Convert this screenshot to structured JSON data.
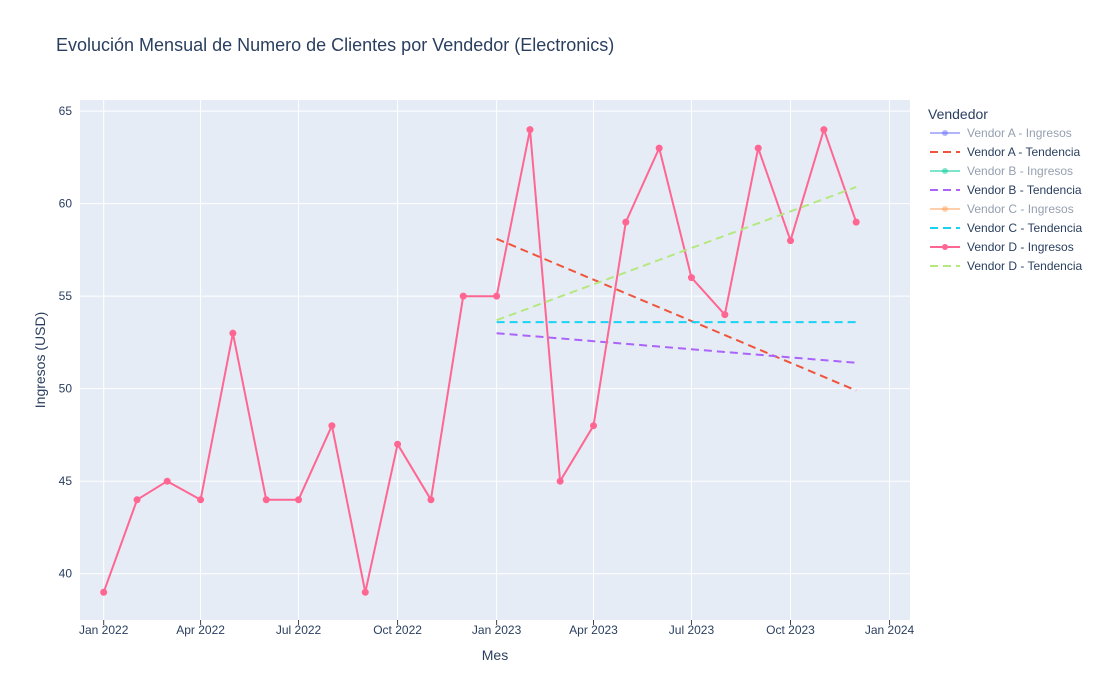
{
  "chart_data": {
    "type": "line",
    "title": "Evolución Mensual de Numero de Clientes por Vendedor (Electronics)",
    "xlabel": "Mes",
    "ylabel": "Ingresos (USD)",
    "ylim": [
      37.5,
      65.6
    ],
    "xlim": [
      "2021-12-10",
      "2024-01-20"
    ],
    "x_ticks": [
      {
        "date": "2022-01-01",
        "label": "Jan 2022"
      },
      {
        "date": "2022-04-01",
        "label": "Apr 2022"
      },
      {
        "date": "2022-07-01",
        "label": "Jul 2022"
      },
      {
        "date": "2022-10-01",
        "label": "Oct 2022"
      },
      {
        "date": "2023-01-01",
        "label": "Jan 2023"
      },
      {
        "date": "2023-04-01",
        "label": "Apr 2023"
      },
      {
        "date": "2023-07-01",
        "label": "Jul 2023"
      },
      {
        "date": "2023-10-01",
        "label": "Oct 2023"
      },
      {
        "date": "2024-01-01",
        "label": "Jan 2024"
      }
    ],
    "y_ticks": [
      40,
      45,
      50,
      55,
      60,
      65
    ],
    "grid": true,
    "legend": {
      "title": "Vendedor",
      "position": "right"
    },
    "series": [
      {
        "name": "Vendor A - Ingresos",
        "color": "#636efa",
        "style": "lines+markers",
        "visible": "legendonly",
        "points": []
      },
      {
        "name": "Vendor A - Tendencia",
        "color": "#EF553B",
        "style": "dash",
        "points": [
          {
            "x": "2023-01-01",
            "y": 58.1
          },
          {
            "x": "2023-12-01",
            "y": 49.9
          }
        ]
      },
      {
        "name": "Vendor B - Ingresos",
        "color": "#00cc96",
        "style": "lines+markers",
        "visible": "legendonly",
        "points": []
      },
      {
        "name": "Vendor B - Tendencia",
        "color": "#ab63fa",
        "style": "dash",
        "points": [
          {
            "x": "2023-01-01",
            "y": 53.0
          },
          {
            "x": "2023-12-01",
            "y": 51.4
          }
        ]
      },
      {
        "name": "Vendor C - Ingresos",
        "color": "#FFA15A",
        "style": "lines+markers",
        "visible": "legendonly",
        "points": []
      },
      {
        "name": "Vendor C - Tendencia",
        "color": "#19d3f3",
        "style": "dash",
        "points": [
          {
            "x": "2023-01-01",
            "y": 53.6
          },
          {
            "x": "2023-12-01",
            "y": 53.6
          }
        ]
      },
      {
        "name": "Vendor D - Ingresos",
        "color": "#FF6692",
        "style": "lines+markers",
        "points": [
          {
            "x": "2022-01-01",
            "y": 39
          },
          {
            "x": "2022-02-01",
            "y": 44
          },
          {
            "x": "2022-03-01",
            "y": 45
          },
          {
            "x": "2022-04-01",
            "y": 44
          },
          {
            "x": "2022-05-01",
            "y": 53
          },
          {
            "x": "2022-06-01",
            "y": 44
          },
          {
            "x": "2022-07-01",
            "y": 44
          },
          {
            "x": "2022-08-01",
            "y": 48
          },
          {
            "x": "2022-09-01",
            "y": 39
          },
          {
            "x": "2022-10-01",
            "y": 47
          },
          {
            "x": "2022-11-01",
            "y": 44
          },
          {
            "x": "2022-12-01",
            "y": 55
          },
          {
            "x": "2023-01-01",
            "y": 55
          },
          {
            "x": "2023-02-01",
            "y": 64
          },
          {
            "x": "2023-03-01",
            "y": 45
          },
          {
            "x": "2023-04-01",
            "y": 48
          },
          {
            "x": "2023-05-01",
            "y": 59
          },
          {
            "x": "2023-06-01",
            "y": 63
          },
          {
            "x": "2023-07-01",
            "y": 56
          },
          {
            "x": "2023-08-01",
            "y": 54
          },
          {
            "x": "2023-09-01",
            "y": 63
          },
          {
            "x": "2023-10-01",
            "y": 58
          },
          {
            "x": "2023-11-01",
            "y": 64
          },
          {
            "x": "2023-12-01",
            "y": 59
          }
        ]
      },
      {
        "name": "Vendor D - Tendencia",
        "color": "#B6E880",
        "style": "dash",
        "points": [
          {
            "x": "2023-01-01",
            "y": 53.7
          },
          {
            "x": "2023-12-01",
            "y": 60.9
          }
        ]
      }
    ]
  }
}
